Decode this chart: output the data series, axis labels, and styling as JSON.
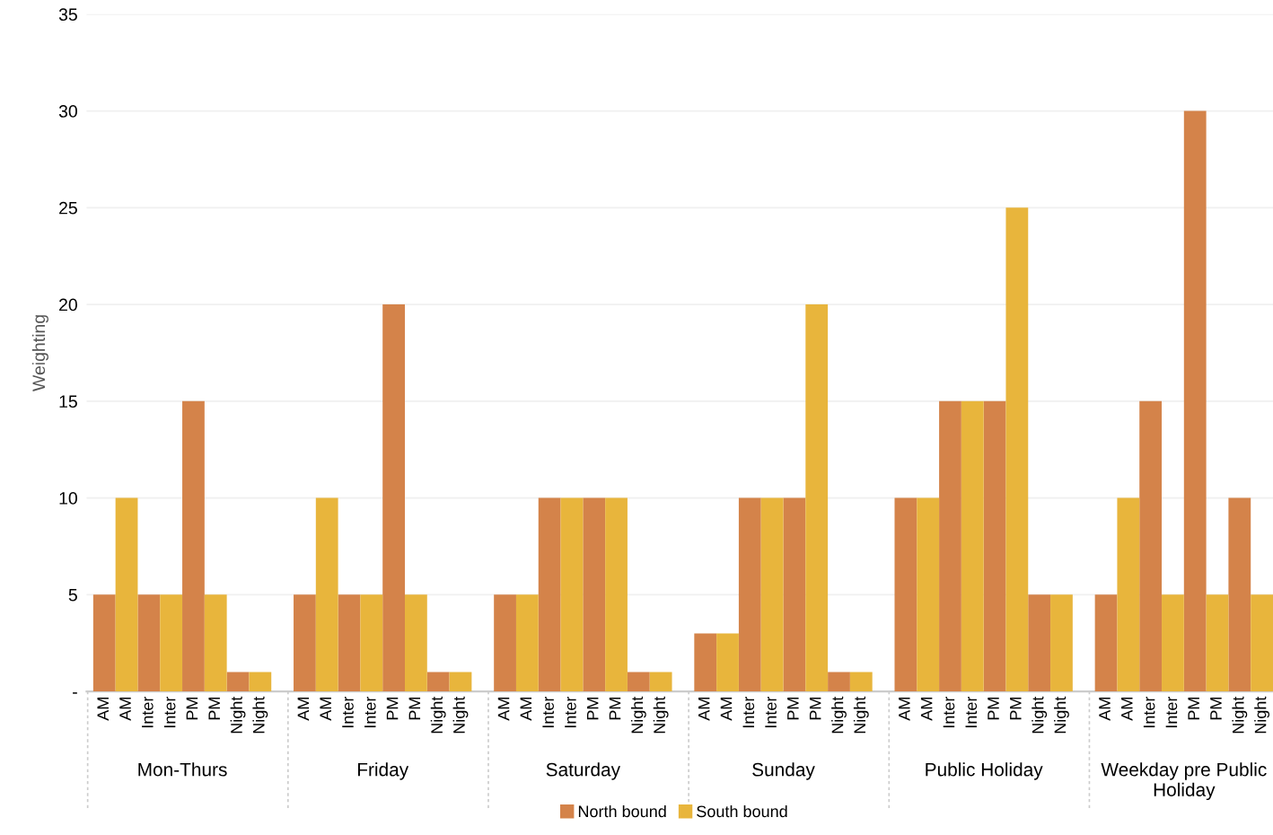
{
  "chart_data": {
    "type": "bar",
    "ylabel": "Weighting",
    "categories": [
      "AM",
      "AM",
      "Inter",
      "Inter",
      "PM",
      "PM",
      "Night",
      "Night",
      "AM",
      "AM",
      "Inter",
      "Inter",
      "PM",
      "PM",
      "Night",
      "Night",
      "AM",
      "AM",
      "Inter",
      "Inter",
      "PM",
      "PM",
      "Night",
      "Night",
      "AM",
      "AM",
      "Inter",
      "Inter",
      "PM",
      "PM",
      "Night",
      "Night",
      "AM",
      "AM",
      "Inter",
      "Inter",
      "PM",
      "PM",
      "Night",
      "Night",
      "AM",
      "AM",
      "Inter",
      "Inter",
      "PM",
      "PM",
      "Night",
      "Night"
    ],
    "series": [
      {
        "name": "North bound",
        "color": "#d4834a",
        "values": [
          5,
          null,
          5,
          null,
          15,
          null,
          1,
          null,
          5,
          null,
          5,
          null,
          20,
          null,
          1,
          null,
          5,
          null,
          10,
          null,
          10,
          null,
          1,
          null,
          3,
          null,
          10,
          null,
          10,
          null,
          1,
          null,
          10,
          null,
          15,
          null,
          15,
          null,
          5,
          null,
          5,
          null,
          15,
          null,
          30,
          null,
          10,
          null
        ]
      },
      {
        "name": "South bound",
        "color": "#e8b53c",
        "values": [
          null,
          10,
          null,
          5,
          null,
          5,
          null,
          1,
          null,
          10,
          null,
          5,
          null,
          5,
          null,
          1,
          null,
          5,
          null,
          10,
          null,
          10,
          null,
          1,
          null,
          3,
          null,
          10,
          null,
          20,
          null,
          1,
          null,
          10,
          null,
          15,
          null,
          25,
          null,
          5,
          null,
          10,
          null,
          5,
          null,
          5,
          null,
          5
        ]
      }
    ],
    "annotations": [
      "Mon-Thurs",
      "Friday",
      "Saturday",
      "Sunday",
      "Public Holiday",
      "Weekday pre Public Holiday"
    ],
    "ylim": [
      0,
      35
    ],
    "yticks": [
      {
        "value": 0,
        "label": "-"
      },
      5,
      10,
      15,
      20,
      25,
      30,
      35
    ],
    "grid": "y",
    "legend": "bottom"
  }
}
